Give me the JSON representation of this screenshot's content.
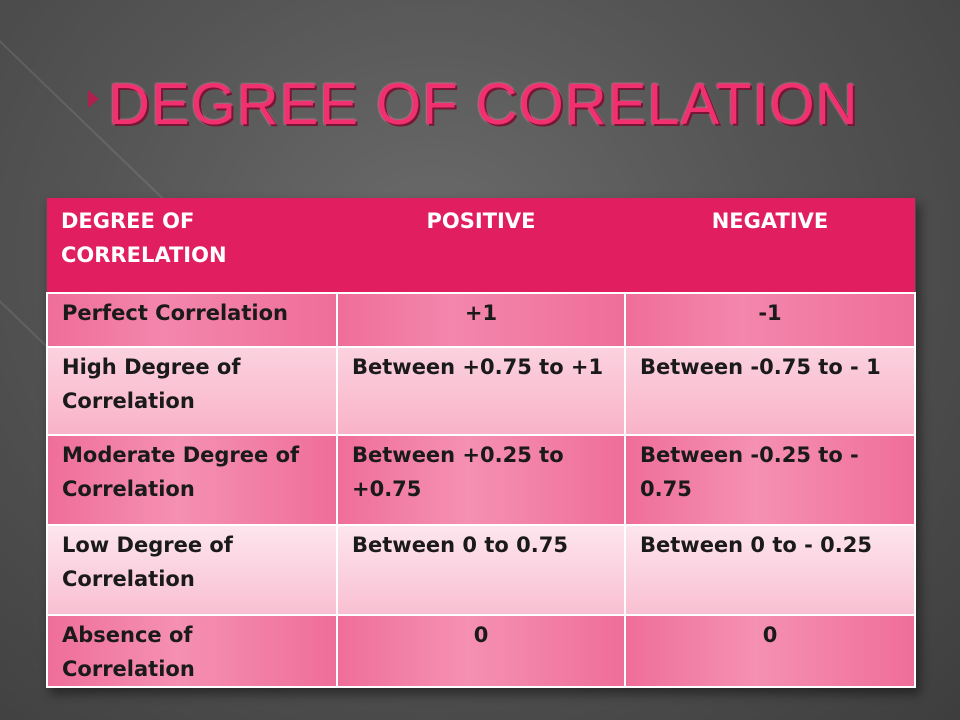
{
  "slide": {
    "title": "DEGREE OF CORELATION"
  },
  "table": {
    "headers": [
      "DEGREE OF CORRELATION",
      "POSITIVE",
      "NEGATIVE"
    ],
    "rows": [
      [
        "Perfect Correlation",
        "+1",
        "-1"
      ],
      [
        "High Degree of Correlation",
        "Between +0.75 to +1",
        "Between -0.75 to - 1"
      ],
      [
        "Moderate Degree of Correlation",
        "Between +0.25 to +0.75",
        "Between -0.25 to - 0.75"
      ],
      [
        "Low Degree of Correlation",
        "Between 0 to 0.75",
        "Between  0 to - 0.25"
      ],
      [
        "Absence of Correlation",
        "0",
        "0"
      ]
    ]
  },
  "colors": {
    "accent": "#e01e60",
    "title": "#f0306f",
    "background": "#555555"
  }
}
